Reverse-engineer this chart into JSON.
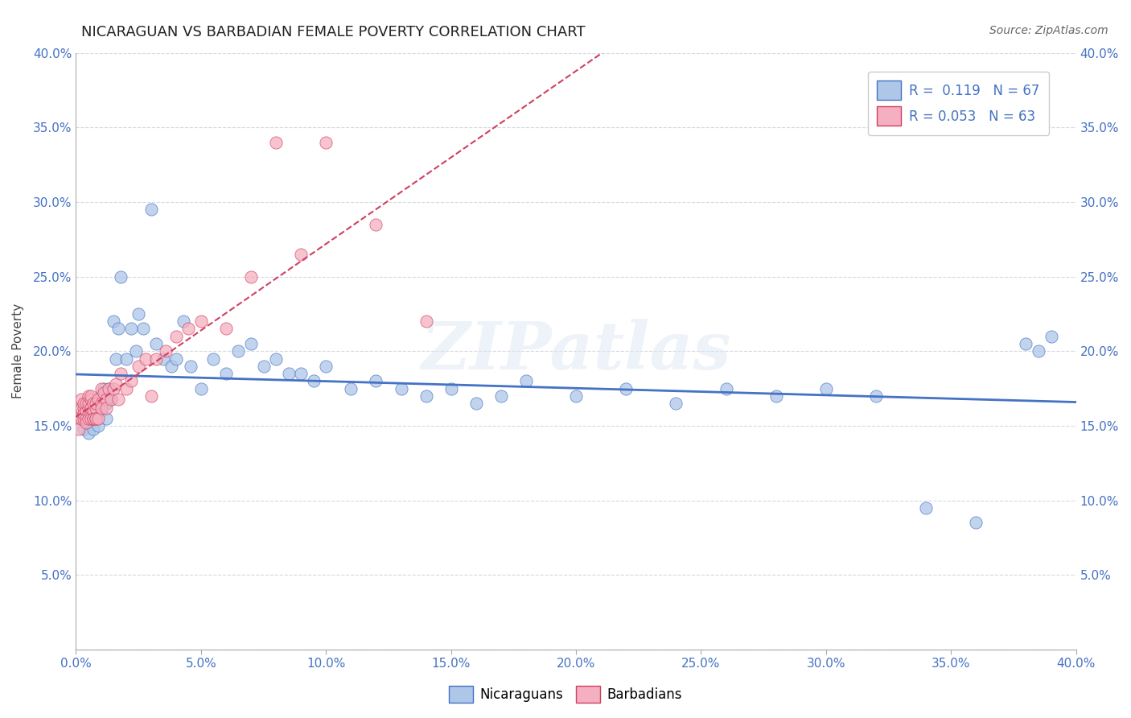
{
  "title": "NICARAGUAN VS BARBADIAN FEMALE POVERTY CORRELATION CHART",
  "source": "Source: ZipAtlas.com",
  "xlabel": "",
  "ylabel": "Female Poverty",
  "xlim": [
    0.0,
    0.4
  ],
  "ylim": [
    0.0,
    0.4
  ],
  "xticks": [
    0.0,
    0.05,
    0.1,
    0.15,
    0.2,
    0.25,
    0.3,
    0.35,
    0.4
  ],
  "yticks": [
    0.0,
    0.05,
    0.1,
    0.15,
    0.2,
    0.25,
    0.3,
    0.35,
    0.4
  ],
  "ytick_labels": [
    "",
    "5.0%",
    "10.0%",
    "15.0%",
    "20.0%",
    "25.0%",
    "30.0%",
    "35.0%",
    "40.0%"
  ],
  "nicaraguan_color": "#aec6e8",
  "barbadian_color": "#f4afc0",
  "trend_nicaraguan_color": "#4472c4",
  "trend_barbadian_color": "#d04060",
  "R_nicaraguan": 0.119,
  "N_nicaraguan": 67,
  "R_barbadian": 0.053,
  "N_barbadian": 63,
  "watermark": "ZIPatlas",
  "legend_labels": [
    "Nicaraguans",
    "Barbadians"
  ],
  "nicaraguan_x": [
    0.002,
    0.003,
    0.004,
    0.005,
    0.005,
    0.006,
    0.006,
    0.007,
    0.007,
    0.008,
    0.008,
    0.009,
    0.009,
    0.01,
    0.01,
    0.011,
    0.012,
    0.012,
    0.013,
    0.014,
    0.015,
    0.016,
    0.017,
    0.018,
    0.02,
    0.022,
    0.024,
    0.025,
    0.027,
    0.03,
    0.032,
    0.035,
    0.038,
    0.04,
    0.043,
    0.046,
    0.05,
    0.055,
    0.06,
    0.065,
    0.07,
    0.075,
    0.08,
    0.085,
    0.09,
    0.095,
    0.1,
    0.11,
    0.12,
    0.13,
    0.14,
    0.15,
    0.16,
    0.17,
    0.18,
    0.2,
    0.22,
    0.24,
    0.26,
    0.28,
    0.3,
    0.32,
    0.34,
    0.36,
    0.38,
    0.385,
    0.39
  ],
  "nicaraguan_y": [
    0.155,
    0.148,
    0.152,
    0.16,
    0.145,
    0.158,
    0.162,
    0.155,
    0.148,
    0.165,
    0.155,
    0.16,
    0.15,
    0.17,
    0.16,
    0.175,
    0.165,
    0.155,
    0.175,
    0.168,
    0.22,
    0.195,
    0.215,
    0.25,
    0.195,
    0.215,
    0.2,
    0.225,
    0.215,
    0.295,
    0.205,
    0.195,
    0.19,
    0.195,
    0.22,
    0.19,
    0.175,
    0.195,
    0.185,
    0.2,
    0.205,
    0.19,
    0.195,
    0.185,
    0.185,
    0.18,
    0.19,
    0.175,
    0.18,
    0.175,
    0.17,
    0.175,
    0.165,
    0.17,
    0.18,
    0.17,
    0.175,
    0.165,
    0.175,
    0.17,
    0.175,
    0.17,
    0.095,
    0.085,
    0.205,
    0.2,
    0.21
  ],
  "barbadian_x": [
    0.001,
    0.001,
    0.002,
    0.002,
    0.002,
    0.003,
    0.003,
    0.003,
    0.003,
    0.004,
    0.004,
    0.004,
    0.004,
    0.005,
    0.005,
    0.005,
    0.005,
    0.005,
    0.006,
    0.006,
    0.006,
    0.006,
    0.006,
    0.006,
    0.007,
    0.007,
    0.007,
    0.007,
    0.008,
    0.008,
    0.008,
    0.008,
    0.009,
    0.009,
    0.01,
    0.01,
    0.01,
    0.011,
    0.012,
    0.012,
    0.013,
    0.014,
    0.015,
    0.016,
    0.017,
    0.018,
    0.02,
    0.022,
    0.025,
    0.028,
    0.032,
    0.036,
    0.04,
    0.045,
    0.05,
    0.06,
    0.07,
    0.08,
    0.09,
    0.1,
    0.12,
    0.14,
    0.03
  ],
  "barbadian_y": [
    0.155,
    0.148,
    0.162,
    0.155,
    0.168,
    0.162,
    0.155,
    0.165,
    0.158,
    0.16,
    0.155,
    0.165,
    0.152,
    0.162,
    0.158,
    0.165,
    0.155,
    0.17,
    0.162,
    0.158,
    0.168,
    0.155,
    0.162,
    0.17,
    0.16,
    0.155,
    0.165,
    0.155,
    0.162,
    0.155,
    0.165,
    0.155,
    0.168,
    0.155,
    0.175,
    0.165,
    0.162,
    0.172,
    0.168,
    0.162,
    0.175,
    0.168,
    0.175,
    0.178,
    0.168,
    0.185,
    0.175,
    0.18,
    0.19,
    0.195,
    0.195,
    0.2,
    0.21,
    0.215,
    0.22,
    0.215,
    0.25,
    0.34,
    0.265,
    0.34,
    0.285,
    0.22,
    0.17
  ]
}
